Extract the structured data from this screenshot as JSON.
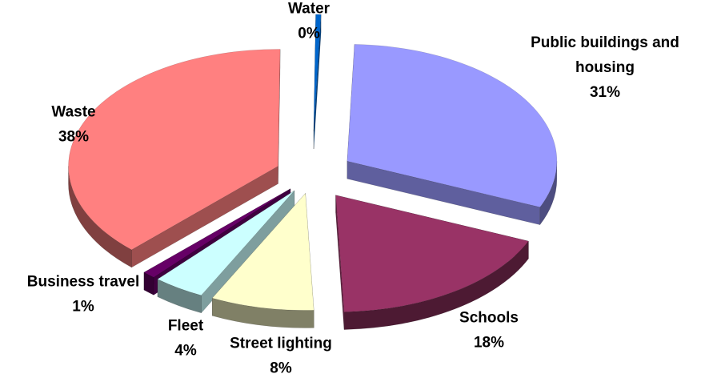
{
  "chart_data": {
    "type": "pie",
    "style": "3d-exploded",
    "title": "",
    "legend": "none",
    "slices": [
      {
        "name": "Public buildings and housing",
        "label_lines": [
          "Public buildings and",
          "housing"
        ],
        "pct_label": "31%",
        "value": 31,
        "color": "#9999ff"
      },
      {
        "name": "Schools",
        "label_lines": [
          "Schools"
        ],
        "pct_label": "18%",
        "value": 18,
        "color": "#993366"
      },
      {
        "name": "Street lighting",
        "label_lines": [
          "Street lighting"
        ],
        "pct_label": "8%",
        "value": 8,
        "color": "#ffffcc"
      },
      {
        "name": "Fleet",
        "label_lines": [
          "Fleet"
        ],
        "pct_label": "4%",
        "value": 4,
        "color": "#ccffff"
      },
      {
        "name": "Business travel",
        "label_lines": [
          "Business travel"
        ],
        "pct_label": "1%",
        "value": 1,
        "color": "#660066"
      },
      {
        "name": "Waste",
        "label_lines": [
          "Waste"
        ],
        "pct_label": "38%",
        "value": 38,
        "color": "#ff8080"
      },
      {
        "name": "Water",
        "label_lines": [
          "Water"
        ],
        "pct_label": "0%",
        "value": 0.4,
        "color": "#0066cc"
      }
    ]
  }
}
